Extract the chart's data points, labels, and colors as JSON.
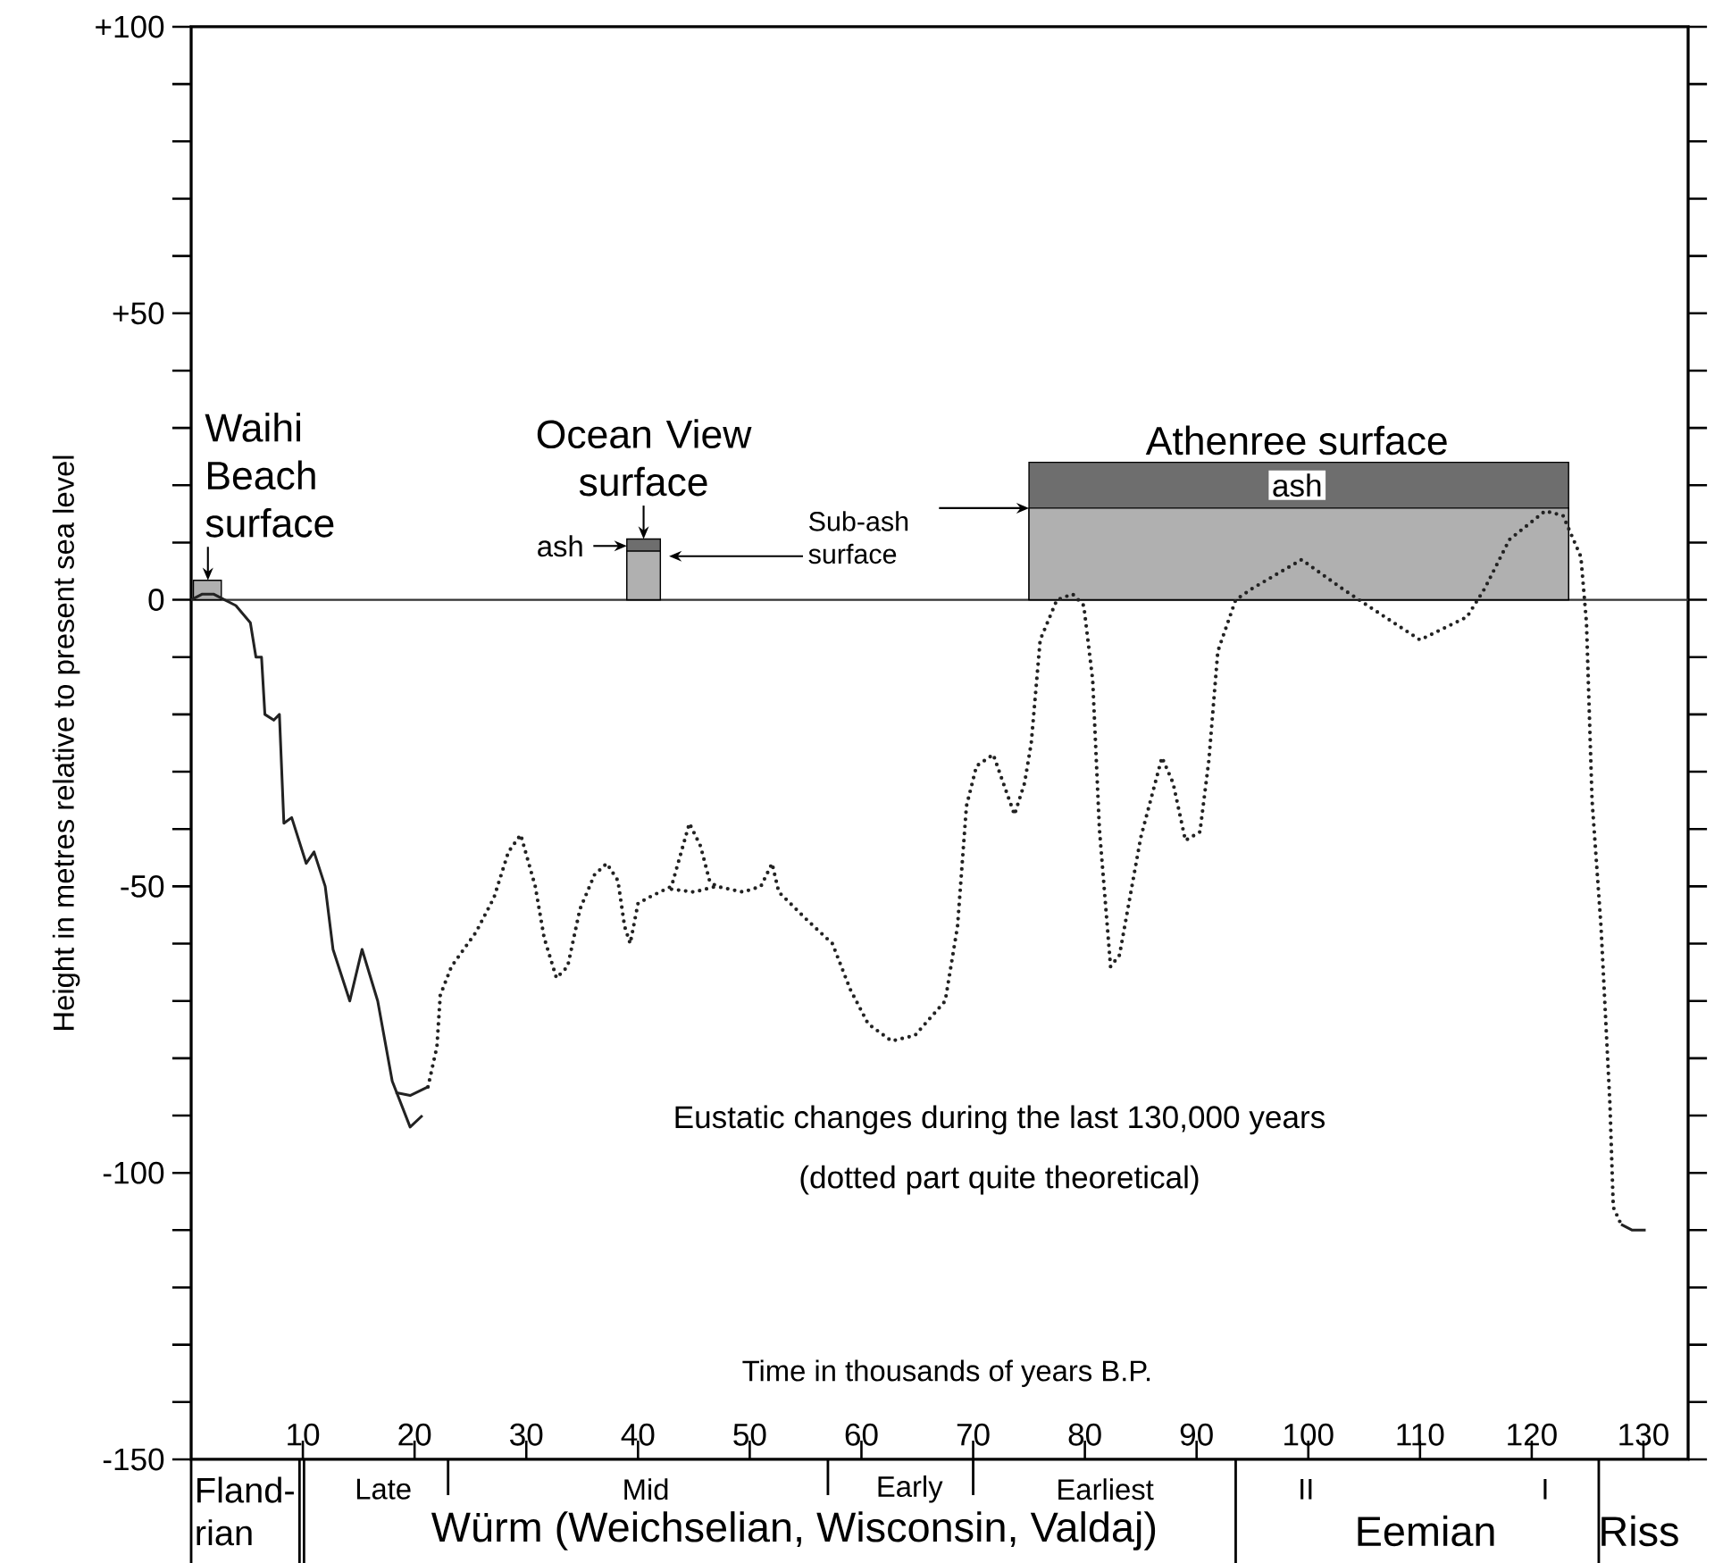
{
  "chart_data": {
    "type": "line",
    "xlabel": "Time in thousands of years B.P.",
    "ylabel": "Height in metres relative to present sea level",
    "xlim": [
      0,
      134
    ],
    "ylim": [
      -150,
      100
    ],
    "xticks": [
      10,
      20,
      30,
      40,
      50,
      60,
      70,
      80,
      90,
      100,
      110,
      120,
      130
    ],
    "yticks": [
      -150,
      {
        "value": -140,
        "label": null
      },
      {
        "value": -130,
        "label": null
      },
      {
        "value": -120,
        "label": null
      },
      {
        "value": -110,
        "label": null
      },
      -100,
      {
        "value": -90,
        "label": null
      },
      {
        "value": -80,
        "label": null
      },
      {
        "value": -70,
        "label": null
      },
      {
        "value": -60,
        "label": null
      },
      -50,
      {
        "value": -40,
        "label": null
      },
      {
        "value": -30,
        "label": null
      },
      {
        "value": -20,
        "label": null
      },
      {
        "value": -10,
        "label": null
      },
      0,
      {
        "value": 10,
        "label": null
      },
      {
        "value": 20,
        "label": null
      },
      {
        "value": 30,
        "label": null
      },
      {
        "value": 40,
        "label": null
      },
      {
        "value": 50,
        "label": "+50"
      },
      {
        "value": 60,
        "label": null
      },
      {
        "value": 70,
        "label": null
      },
      {
        "value": 80,
        "label": null
      },
      {
        "value": 90,
        "label": null
      },
      {
        "value": 100,
        "label": "+100"
      }
    ],
    "ref_lines": [
      {
        "axis": "y",
        "value": 0,
        "color": "#333333"
      }
    ],
    "series": [
      {
        "type": "area",
        "color": "#b0b0b0",
        "x": [
          0.2,
          2.7
        ],
        "values": [
          3.4,
          3.4
        ]
      },
      {
        "type": "area",
        "color": "#6e6e6e",
        "x": [
          39,
          42
        ],
        "values": [
          10.6,
          10.6
        ]
      },
      {
        "type": "area",
        "color": "#b0b0b0",
        "x": [
          39,
          42
        ],
        "values": [
          8.5,
          8.5
        ]
      },
      {
        "type": "area",
        "color": "#6e6e6e",
        "x": [
          75,
          123.3
        ],
        "values": [
          24,
          24
        ]
      },
      {
        "type": "area",
        "color": "#b0b0b0",
        "x": [
          75,
          123.3
        ],
        "values": [
          16,
          16
        ]
      },
      {
        "line_style": "solid",
        "color": "#222222",
        "x": [
          0,
          1,
          2,
          3,
          4,
          5.3,
          5.8,
          6.3,
          6.6,
          7.4,
          7.9,
          8.3,
          9,
          10.3,
          11,
          12,
          12.7,
          14.2,
          15.3,
          16.7,
          18,
          19.6,
          20.7
        ],
        "values": [
          0,
          1,
          1,
          0,
          -1,
          -4,
          -10,
          -10,
          -20,
          -21,
          -20,
          -39,
          -38,
          -46,
          -44,
          -50,
          -61,
          -70,
          -61,
          -70,
          -84,
          -92,
          -90
        ]
      },
      {
        "line_style": "solid",
        "color": "#222222",
        "x": [
          18.3,
          19.6,
          21.2
        ],
        "values": [
          -86,
          -86.5,
          -85
        ]
      },
      {
        "line_style": "dotted",
        "color": "#222222",
        "x": [
          21.2,
          22,
          22.3,
          23.3,
          25.5,
          27.1,
          28.4,
          29.5,
          30.8,
          31.6,
          32.7,
          33.7,
          34.8,
          36.1,
          37.2,
          38.2,
          38.8,
          39.3,
          40,
          40.9,
          43,
          44.6,
          45.6,
          46.4,
          47,
          49.4,
          51,
          52,
          52.6,
          55.2,
          57.4,
          59,
          60.6,
          62.7,
          64.8,
          67.5,
          68.6,
          69.4,
          70.3,
          71.8,
          72.7,
          73.7,
          74.6,
          75.2,
          76,
          77.5,
          78.9,
          79.9,
          80.7,
          81.3,
          82.3,
          83.1,
          85,
          86.9,
          87.9,
          89,
          90.3,
          91.1,
          91.9,
          93.5,
          95,
          99.4,
          103,
          105.3,
          110,
          114.2,
          115.8,
          118,
          121.2,
          122.8,
          124.4,
          124.9,
          125.4,
          126.2,
          127,
          127.3,
          128
        ],
        "values": [
          -85,
          -78,
          -69,
          -64,
          -58,
          -52,
          -44,
          -41,
          -50,
          -59,
          -66,
          -64,
          -54,
          -48,
          -46,
          -49,
          -57,
          -60,
          -53,
          -52,
          -50,
          -39,
          -43,
          -49,
          -50,
          -51,
          -50,
          -46,
          -51,
          -56,
          -60,
          -68,
          -74,
          -77,
          -76,
          -70,
          -57,
          -36,
          -29,
          -27,
          -32,
          -37.5,
          -32,
          -25,
          -7,
          0,
          1,
          -1,
          -14,
          -40,
          -64,
          -62,
          -41.5,
          -27.5,
          -32,
          -42,
          -40.5,
          -28,
          -9,
          0,
          2,
          7,
          2,
          -1,
          -7,
          -3,
          2,
          10.5,
          15.5,
          14.7,
          7.5,
          -4,
          -35,
          -57,
          -88,
          -106,
          -109
        ]
      },
      {
        "line_style": "dotted",
        "color": "#222222",
        "x": [
          43,
          45,
          47
        ],
        "values": [
          -50.5,
          -51,
          -50
        ]
      },
      {
        "line_style": "solid",
        "color": "#222222",
        "x": [
          128,
          129,
          130.2
        ],
        "values": [
          -109,
          -110,
          -110
        ]
      }
    ],
    "annotations": [
      {
        "text": "Waihi Beach surface",
        "x": 1.5,
        "y": 3.4
      },
      {
        "text": "Ocean View surface",
        "x": 40.5,
        "y": 10.6
      },
      {
        "text": "ash",
        "x": 39,
        "y": 9.4
      },
      {
        "text": "Sub-ash surface",
        "x": 75,
        "y": 16
      },
      {
        "text": "Athenree surface",
        "x": 99,
        "y": 24
      },
      {
        "text": "ash",
        "x": 99,
        "y": 20
      },
      "Eustatic changes during the last 130,000 years",
      "(dotted part quite theoretical)",
      "Fland-rian",
      "Late",
      "Mid",
      "Early",
      "Earliest",
      "II",
      "I",
      "Würm (Weichselian, Wisconsin, Valdaj)",
      "Eemian",
      "Riss"
    ]
  }
}
